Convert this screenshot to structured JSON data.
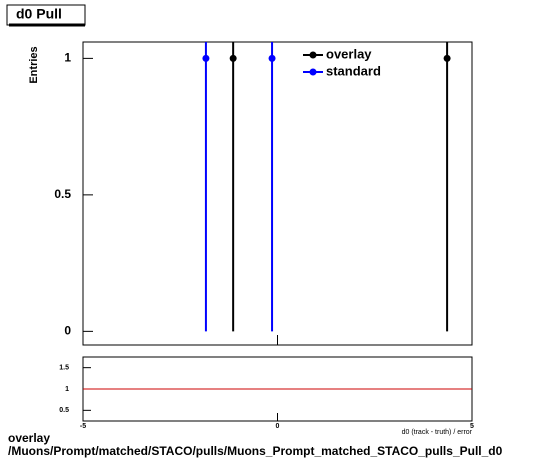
{
  "chart_data": [
    {
      "type": "scatter",
      "title": "d0 Pull",
      "ylabel": "Entries",
      "xlim": [
        -5,
        5
      ],
      "ylim": [
        -0.05,
        1.06
      ],
      "yticks": [
        0,
        0.5,
        1
      ],
      "legend": "top-right",
      "series": [
        {
          "name": "overlay",
          "color": "#000000",
          "x": [
            -1.14,
            4.36
          ],
          "values": [
            1,
            1
          ],
          "errors": [
            1,
            1
          ]
        },
        {
          "name": "standard",
          "color": "#0000ff",
          "x": [
            -1.84,
            -0.14
          ],
          "values": [
            1,
            1
          ],
          "errors": [
            1,
            1
          ]
        }
      ]
    },
    {
      "type": "ratio",
      "xlabel": "d0 (track - truth) / error",
      "xlim": [
        -5,
        5
      ],
      "xticks": [
        -5,
        0,
        5
      ],
      "ylim": [
        0.25,
        1.75
      ],
      "yticks": [
        0.5,
        1,
        1.5
      ],
      "reference": 1,
      "reference_color": "#cc0000"
    }
  ],
  "footer": {
    "line1": "overlay",
    "line2": "/Muons/Prompt/matched/STACO/pulls/Muons_Prompt_matched_STACO_pulls_Pull_d0"
  }
}
